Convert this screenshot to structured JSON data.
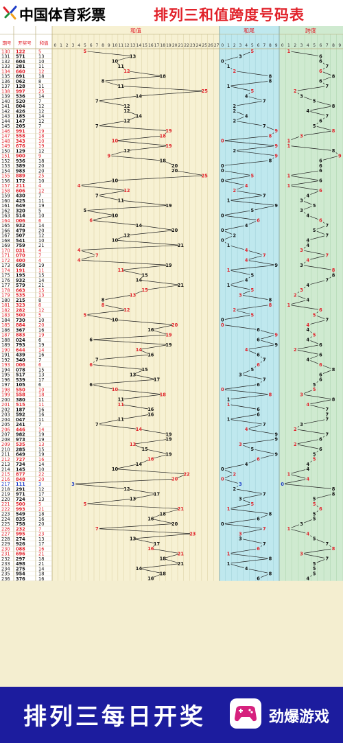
{
  "header": {
    "brand": "中国体育彩票",
    "title": "排列三和值跨度号码表"
  },
  "footer": {
    "slogan": "排列三每日开奖",
    "brand": "劲爆游戏"
  },
  "colors": {
    "red": "#e1222a",
    "blue": "#1f3ec8",
    "black": "#111111",
    "sum_bg": "#f7f1d3",
    "tail_bg": "#bfe8ee",
    "span_bg": "#cfead0",
    "footer_bg": "#1c1c9e"
  },
  "chart_data": {
    "type": "table",
    "columns": {
      "period": "期号",
      "number": "开奖号",
      "sum": "和值"
    },
    "sections": {
      "sum": "和值",
      "tail": "和尾",
      "span": "跨度"
    },
    "sum_range": [
      0,
      27
    ],
    "tail_range": [
      0,
      9
    ],
    "span_range": [
      0,
      9
    ],
    "rows": [
      {
        "p": "130",
        "n": "122",
        "s": 5,
        "t": 5,
        "k": 1,
        "c": "r"
      },
      {
        "p": "131",
        "n": "571",
        "s": 13,
        "t": 3,
        "k": 6,
        "c": "k"
      },
      {
        "p": "132",
        "n": "604",
        "s": 10,
        "t": 0,
        "k": 6,
        "c": "k"
      },
      {
        "p": "133",
        "n": "281",
        "s": 11,
        "t": 1,
        "k": 7,
        "c": "k"
      },
      {
        "p": "134",
        "n": "660",
        "s": 12,
        "t": 2,
        "k": 6,
        "c": "r"
      },
      {
        "p": "135",
        "n": "891",
        "s": 18,
        "t": 8,
        "k": 8,
        "c": "k"
      },
      {
        "p": "136",
        "n": "062",
        "s": 8,
        "t": 8,
        "k": 6,
        "c": "k"
      },
      {
        "p": "137",
        "n": "128",
        "s": 11,
        "t": 1,
        "k": 7,
        "c": "k"
      },
      {
        "p": "138",
        "n": "997",
        "s": 25,
        "t": 5,
        "k": 2,
        "c": "r"
      },
      {
        "p": "139",
        "n": "536",
        "s": 14,
        "t": 4,
        "k": 3,
        "c": "k"
      },
      {
        "p": "140",
        "n": "520",
        "s": 7,
        "t": 7,
        "k": 5,
        "c": "k"
      },
      {
        "p": "141",
        "n": "804",
        "s": 12,
        "t": 2,
        "k": 8,
        "c": "k"
      },
      {
        "p": "142",
        "n": "426",
        "s": 12,
        "t": 2,
        "k": 4,
        "c": "k"
      },
      {
        "p": "143",
        "n": "185",
        "s": 14,
        "t": 4,
        "k": 7,
        "c": "k"
      },
      {
        "p": "144",
        "n": "147",
        "s": 12,
        "t": 2,
        "k": 6,
        "c": "k"
      },
      {
        "p": "145",
        "n": "205",
        "s": 7,
        "t": 7,
        "k": 5,
        "c": "k"
      },
      {
        "p": "146",
        "n": "991",
        "s": 19,
        "t": 9,
        "k": 8,
        "c": "r"
      },
      {
        "p": "147",
        "n": "558",
        "s": 18,
        "t": 8,
        "k": 3,
        "c": "r"
      },
      {
        "p": "148",
        "n": "343",
        "s": 10,
        "t": 0,
        "k": 1,
        "c": "r"
      },
      {
        "p": "149",
        "n": "676",
        "s": 19,
        "t": 9,
        "k": 1,
        "c": "r"
      },
      {
        "p": "150",
        "n": "129",
        "s": 12,
        "t": 2,
        "k": 8,
        "c": "k"
      },
      {
        "p": "151",
        "n": "900",
        "s": 9,
        "t": 9,
        "k": 9,
        "c": "r"
      },
      {
        "p": "152",
        "n": "936",
        "s": 18,
        "t": 8,
        "k": 6,
        "c": "k"
      },
      {
        "p": "153",
        "n": "389",
        "s": 20,
        "t": 0,
        "k": 6,
        "c": "k"
      },
      {
        "p": "154",
        "n": "983",
        "s": 20,
        "t": 0,
        "k": 6,
        "c": "k"
      },
      {
        "p": "155",
        "n": "889",
        "s": 25,
        "t": 5,
        "k": 1,
        "c": "r"
      },
      {
        "p": "156",
        "n": "172",
        "s": 10,
        "t": 0,
        "k": 6,
        "c": "k"
      },
      {
        "p": "157",
        "n": "211",
        "s": 4,
        "t": 4,
        "k": 1,
        "c": "r"
      },
      {
        "p": "158",
        "n": "606",
        "s": 12,
        "t": 2,
        "k": 6,
        "c": "r"
      },
      {
        "p": "159",
        "n": "430",
        "s": 7,
        "t": 7,
        "k": 4,
        "c": "k"
      },
      {
        "p": "160",
        "n": "425",
        "s": 11,
        "t": 1,
        "k": 3,
        "c": "k"
      },
      {
        "p": "161",
        "n": "649",
        "s": 19,
        "t": 9,
        "k": 5,
        "c": "k"
      },
      {
        "p": "162",
        "n": "320",
        "s": 5,
        "t": 5,
        "k": 3,
        "c": "k"
      },
      {
        "p": "163",
        "n": "514",
        "s": 10,
        "t": 0,
        "k": 4,
        "c": "k"
      },
      {
        "p": "164",
        "n": "006",
        "s": 6,
        "t": 6,
        "k": 6,
        "c": "r"
      },
      {
        "p": "165",
        "n": "932",
        "s": 14,
        "t": 4,
        "k": 7,
        "c": "k"
      },
      {
        "p": "166",
        "n": "479",
        "s": 20,
        "t": 0,
        "k": 5,
        "c": "k"
      },
      {
        "p": "167",
        "n": "507",
        "s": 12,
        "t": 2,
        "k": 7,
        "c": "k"
      },
      {
        "p": "168",
        "n": "541",
        "s": 10,
        "t": 0,
        "k": 4,
        "c": "k"
      },
      {
        "p": "169",
        "n": "759",
        "s": 21,
        "t": 1,
        "k": 4,
        "c": "k"
      },
      {
        "p": "170",
        "n": "031",
        "s": 4,
        "t": 4,
        "k": 3,
        "c": "r"
      },
      {
        "p": "171",
        "n": "070",
        "s": 7,
        "t": 7,
        "k": 7,
        "c": "r"
      },
      {
        "p": "172",
        "n": "400",
        "s": 4,
        "t": 4,
        "k": 4,
        "c": "r"
      },
      {
        "p": "173",
        "n": "658",
        "s": 19,
        "t": 9,
        "k": 3,
        "c": "k"
      },
      {
        "p": "174",
        "n": "191",
        "s": 11,
        "t": 1,
        "k": 8,
        "c": "r"
      },
      {
        "p": "175",
        "n": "195",
        "s": 15,
        "t": 5,
        "k": 8,
        "c": "k"
      },
      {
        "p": "176",
        "n": "932",
        "s": 14,
        "t": 4,
        "k": 7,
        "c": "k"
      },
      {
        "p": "177",
        "n": "579",
        "s": 21,
        "t": 1,
        "k": 4,
        "c": "k"
      },
      {
        "p": "178",
        "n": "663",
        "s": 15,
        "t": 5,
        "k": 3,
        "c": "r"
      },
      {
        "p": "179",
        "n": "535",
        "s": 13,
        "t": 3,
        "k": 2,
        "c": "r"
      },
      {
        "p": "180",
        "n": "215",
        "s": 8,
        "t": 8,
        "k": 4,
        "c": "k"
      },
      {
        "p": "181",
        "n": "323",
        "s": 8,
        "t": 8,
        "k": 1,
        "c": "r"
      },
      {
        "p": "182",
        "n": "282",
        "s": 12,
        "t": 2,
        "k": 6,
        "c": "r"
      },
      {
        "p": "183",
        "n": "500",
        "s": 5,
        "t": 5,
        "k": 5,
        "c": "r"
      },
      {
        "p": "184",
        "n": "730",
        "s": 10,
        "t": 0,
        "k": 7,
        "c": "k"
      },
      {
        "p": "185",
        "n": "884",
        "s": 20,
        "t": 0,
        "k": 4,
        "c": "r"
      },
      {
        "p": "186",
        "n": "367",
        "s": 16,
        "t": 6,
        "k": 4,
        "c": "k"
      },
      {
        "p": "187",
        "n": "883",
        "s": 19,
        "t": 9,
        "k": 5,
        "c": "r"
      },
      {
        "p": "188",
        "n": "024",
        "s": 6,
        "t": 6,
        "k": 4,
        "c": "k"
      },
      {
        "p": "189",
        "n": "793",
        "s": 19,
        "t": 9,
        "k": 6,
        "c": "k"
      },
      {
        "p": "190",
        "n": "644",
        "s": 14,
        "t": 4,
        "k": 2,
        "c": "r"
      },
      {
        "p": "191",
        "n": "439",
        "s": 16,
        "t": 6,
        "k": 6,
        "c": "k"
      },
      {
        "p": "192",
        "n": "340",
        "s": 7,
        "t": 7,
        "k": 4,
        "c": "k"
      },
      {
        "p": "193",
        "n": "006",
        "s": 6,
        "t": 6,
        "k": 6,
        "c": "r"
      },
      {
        "p": "194",
        "n": "078",
        "s": 15,
        "t": 5,
        "k": 8,
        "c": "k"
      },
      {
        "p": "195",
        "n": "517",
        "s": 13,
        "t": 3,
        "k": 6,
        "c": "k"
      },
      {
        "p": "196",
        "n": "539",
        "s": 17,
        "t": 7,
        "k": 6,
        "c": "k"
      },
      {
        "p": "197",
        "n": "105",
        "s": 6,
        "t": 6,
        "k": 5,
        "c": "k"
      },
      {
        "p": "198",
        "n": "550",
        "s": 10,
        "t": 0,
        "k": 5,
        "c": "r"
      },
      {
        "p": "199",
        "n": "558",
        "s": 18,
        "t": 8,
        "k": 3,
        "c": "r"
      },
      {
        "p": "200",
        "n": "380",
        "s": 11,
        "t": 1,
        "k": 8,
        "c": "k"
      },
      {
        "p": "201",
        "n": "515",
        "s": 11,
        "t": 1,
        "k": 4,
        "c": "r"
      },
      {
        "p": "202",
        "n": "187",
        "s": 16,
        "t": 6,
        "k": 7,
        "c": "k"
      },
      {
        "p": "203",
        "n": "592",
        "s": 16,
        "t": 6,
        "k": 7,
        "c": "k"
      },
      {
        "p": "204",
        "n": "047",
        "s": 11,
        "t": 1,
        "k": 7,
        "c": "k"
      },
      {
        "p": "205",
        "n": "241",
        "s": 7,
        "t": 7,
        "k": 3,
        "c": "k"
      },
      {
        "p": "206",
        "n": "446",
        "s": 14,
        "t": 4,
        "k": 2,
        "c": "r"
      },
      {
        "p": "207",
        "n": "982",
        "s": 19,
        "t": 9,
        "k": 7,
        "c": "k"
      },
      {
        "p": "208",
        "n": "973",
        "s": 19,
        "t": 9,
        "k": 6,
        "c": "k"
      },
      {
        "p": "209",
        "n": "535",
        "s": 13,
        "t": 3,
        "k": 2,
        "c": "r"
      },
      {
        "p": "210",
        "n": "285",
        "s": 15,
        "t": 5,
        "k": 6,
        "c": "k"
      },
      {
        "p": "211",
        "n": "649",
        "s": 19,
        "t": 9,
        "k": 5,
        "c": "k"
      },
      {
        "p": "212",
        "n": "727",
        "s": 16,
        "t": 6,
        "k": 5,
        "c": "r"
      },
      {
        "p": "213",
        "n": "734",
        "s": 14,
        "t": 4,
        "k": 4,
        "c": "k"
      },
      {
        "p": "214",
        "n": "145",
        "s": 10,
        "t": 0,
        "k": 4,
        "c": "k"
      },
      {
        "p": "215",
        "n": "877",
        "s": 22,
        "t": 2,
        "k": 1,
        "c": "r"
      },
      {
        "p": "216",
        "n": "848",
        "s": 20,
        "t": 0,
        "k": 4,
        "c": "r"
      },
      {
        "p": "217",
        "n": "111",
        "s": 3,
        "t": 3,
        "k": 0,
        "c": "b"
      },
      {
        "p": "218",
        "n": "291",
        "s": 12,
        "t": 2,
        "k": 8,
        "c": "k"
      },
      {
        "p": "219",
        "n": "971",
        "s": 17,
        "t": 7,
        "k": 8,
        "c": "k"
      },
      {
        "p": "220",
        "n": "724",
        "s": 13,
        "t": 3,
        "k": 5,
        "c": "k"
      },
      {
        "p": "221",
        "n": "500",
        "s": 5,
        "t": 5,
        "k": 5,
        "c": "r"
      },
      {
        "p": "222",
        "n": "993",
        "s": 21,
        "t": 1,
        "k": 6,
        "c": "r"
      },
      {
        "p": "223",
        "n": "549",
        "s": 18,
        "t": 8,
        "k": 5,
        "c": "k"
      },
      {
        "p": "224",
        "n": "835",
        "s": 16,
        "t": 6,
        "k": 5,
        "c": "k"
      },
      {
        "p": "225",
        "n": "758",
        "s": 20,
        "t": 0,
        "k": 3,
        "c": "k"
      },
      {
        "p": "226",
        "n": "232",
        "s": 7,
        "t": 7,
        "k": 1,
        "c": "r"
      },
      {
        "p": "227",
        "n": "995",
        "s": 23,
        "t": 3,
        "k": 4,
        "c": "r"
      },
      {
        "p": "228",
        "n": "274",
        "s": 13,
        "t": 3,
        "k": 5,
        "c": "k"
      },
      {
        "p": "229",
        "n": "926",
        "s": 17,
        "t": 7,
        "k": 7,
        "c": "k"
      },
      {
        "p": "230",
        "n": "088",
        "s": 16,
        "t": 6,
        "k": 8,
        "c": "r"
      },
      {
        "p": "231",
        "n": "696",
        "s": 21,
        "t": 1,
        "k": 3,
        "c": "r"
      },
      {
        "p": "232",
        "n": "297",
        "s": 18,
        "t": 8,
        "k": 7,
        "c": "k"
      },
      {
        "p": "233",
        "n": "498",
        "s": 21,
        "t": 1,
        "k": 5,
        "c": "k"
      },
      {
        "p": "234",
        "n": "275",
        "s": 14,
        "t": 4,
        "k": 5,
        "c": "k"
      },
      {
        "p": "235",
        "n": "954",
        "s": 18,
        "t": 8,
        "k": 5,
        "c": "k"
      },
      {
        "p": "236",
        "n": "376",
        "s": 16,
        "t": 6,
        "k": 4,
        "c": "k"
      }
    ]
  }
}
